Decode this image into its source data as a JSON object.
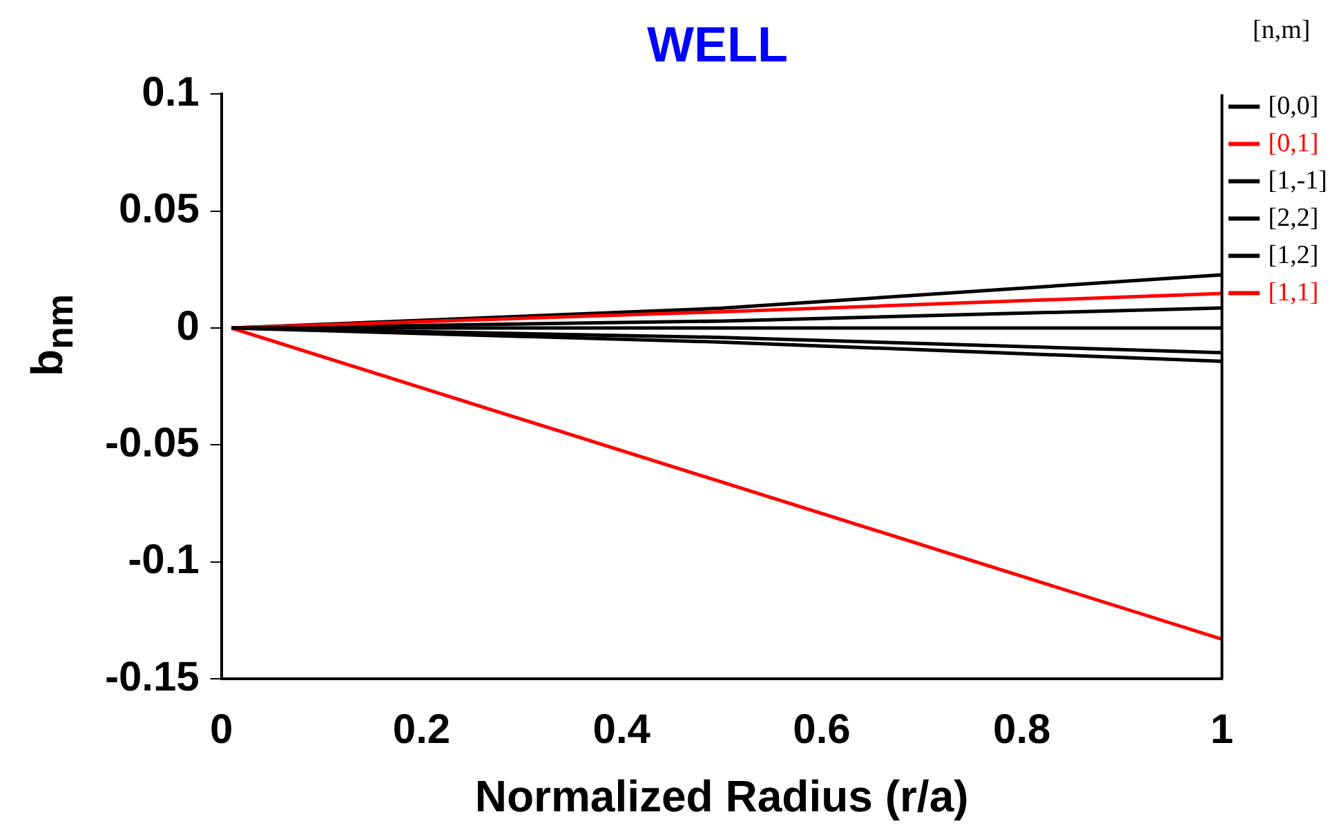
{
  "chart_data": {
    "type": "line",
    "title": "WELL",
    "xlabel": "Normalized Radius (r/a)",
    "ylabel": "b$_{nm}$",
    "legend_title": "[n,m]",
    "legend": "right",
    "grid": false,
    "marker": "none",
    "line_style": "solid",
    "xlim": [
      0,
      1
    ],
    "xticks": [
      0,
      0.2,
      0.4,
      0.6,
      0.8,
      1
    ],
    "ylim": [
      -0.15,
      0.1
    ],
    "yticks": [
      0.1,
      0.05,
      0,
      -0.05,
      -0.1,
      -0.15
    ],
    "series": [
      {
        "name": "[0,0]",
        "color": "#000000",
        "x": [
          0.01,
          0.5,
          1
        ],
        "values": [
          0,
          0,
          0
        ]
      },
      {
        "name": "[0,1]",
        "color": "#ff0000",
        "x": [
          0.01,
          0.5,
          1
        ],
        "values": [
          0,
          0.007,
          0.0148
        ]
      },
      {
        "name": "[1,-1]",
        "color": "#000000",
        "x": [
          0.01,
          0.5,
          1
        ],
        "values": [
          0,
          0.0085,
          0.0228
        ]
      },
      {
        "name": "[2,2]",
        "color": "#000000",
        "x": [
          0.01,
          0.5,
          1
        ],
        "values": [
          0,
          0.003,
          0.0086
        ]
      },
      {
        "name": "[1,2]",
        "color": "#000000",
        "x": [
          0.01,
          0.5,
          1
        ],
        "values": [
          0,
          -0.004,
          -0.0105
        ]
      },
      {
        "color": "#000000",
        "x": [
          0.01,
          0.5,
          1
        ],
        "values": [
          0,
          -0.006,
          -0.0142
        ]
      },
      {
        "name": "[1,1]",
        "color": "#ff0000",
        "x": [
          0.01,
          1
        ],
        "values": [
          0,
          -0.133
        ]
      }
    ]
  }
}
